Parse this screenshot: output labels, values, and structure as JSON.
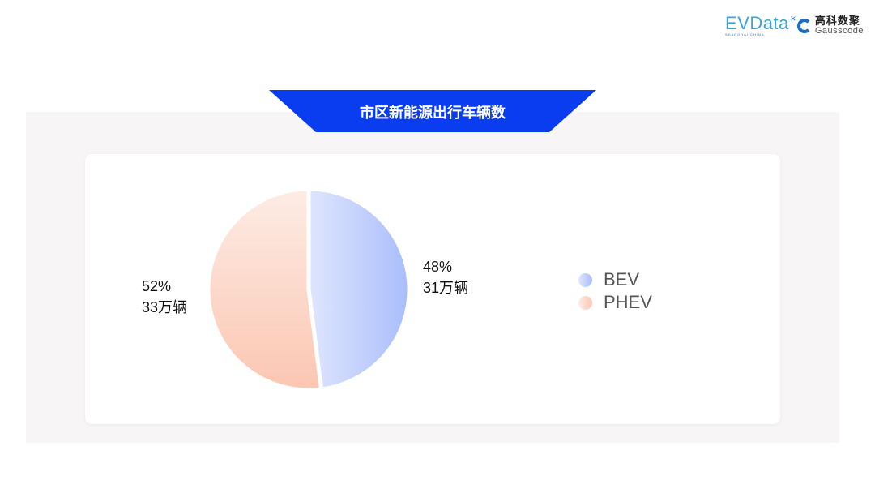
{
  "logos": {
    "evdata": "EVData",
    "evdata_sub": "SHANGHAI CHINA",
    "gauss_cn": "高科数聚",
    "gauss_en": "Gausscode"
  },
  "banner": {
    "title": "市区新能源出行车辆数",
    "color": "#0a3cf0"
  },
  "chart_data": {
    "type": "pie",
    "title": "市区新能源出行车辆数",
    "slices": [
      {
        "name": "BEV",
        "percent": 48,
        "value_label": "31万辆",
        "percent_label": "48%",
        "color_from": "#dfe6fd",
        "color_to": "#a9bdfb"
      },
      {
        "name": "PHEV",
        "percent": 52,
        "value_label": "33万辆",
        "percent_label": "52%",
        "color_from": "#fdece5",
        "color_to": "#fcc6b2"
      }
    ],
    "legend": "right"
  }
}
